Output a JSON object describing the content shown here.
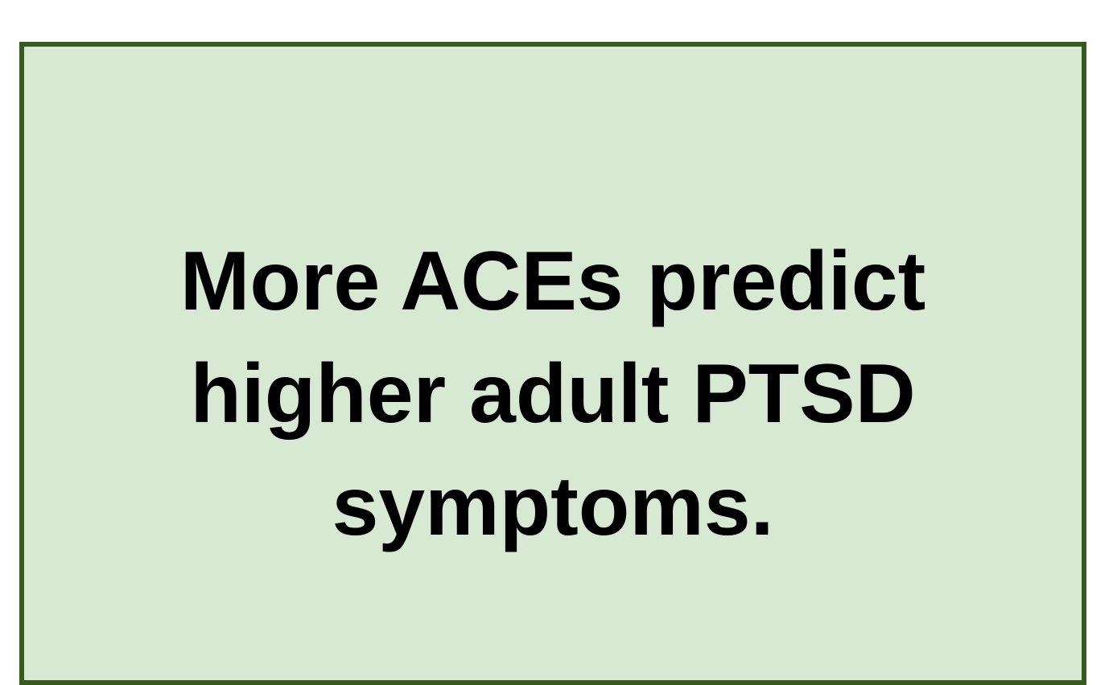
{
  "box": {
    "text": "More ACEs predict higher adult PTSD symptoms."
  }
}
